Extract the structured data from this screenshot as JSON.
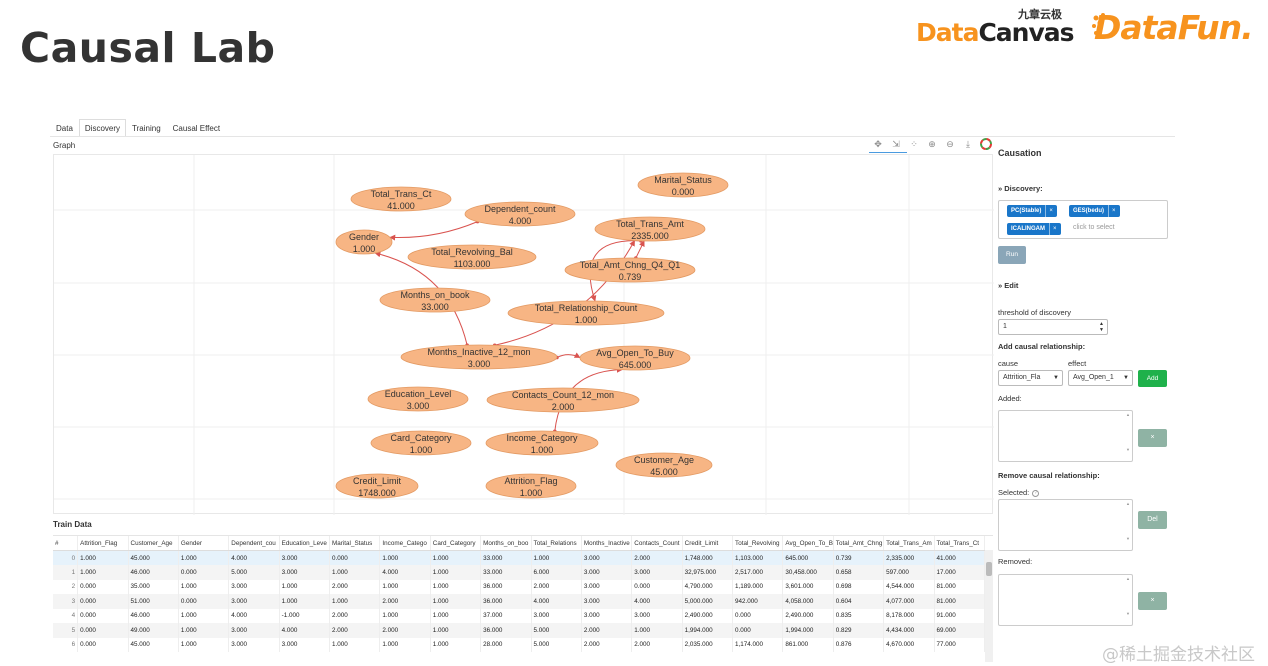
{
  "slide": {
    "title": "Causal Lab"
  },
  "logos": {
    "datacanvas_cn": "九章云极",
    "datacanvas_part1": "Data",
    "datacanvas_part2": "Canvas",
    "datafun": "DataFun."
  },
  "tabs": [
    {
      "label": "Data",
      "active": false
    },
    {
      "label": "Discovery",
      "active": true
    },
    {
      "label": "Training",
      "active": false
    },
    {
      "label": "Causal Effect",
      "active": false
    }
  ],
  "graph": {
    "label": "Graph",
    "toolbar_icons": [
      "move-icon",
      "select-icon",
      "layout-icon",
      "zoom-in-icon",
      "zoom-out-icon",
      "download-icon",
      "color-wheel-icon"
    ],
    "node_color": "#f7b584",
    "edge_color": "#d9534f",
    "nodes": [
      {
        "id": "total_trans_ct",
        "name": "Total_Trans_Ct",
        "value": "41.000"
      },
      {
        "id": "dependent_count",
        "name": "Dependent_count",
        "value": "4.000"
      },
      {
        "id": "marital_status",
        "name": "Marital_Status",
        "value": "0.000"
      },
      {
        "id": "total_trans_amt",
        "name": "Total_Trans_Amt",
        "value": "2335.000"
      },
      {
        "id": "gender",
        "name": "Gender",
        "value": "1.000"
      },
      {
        "id": "total_revolving_bal",
        "name": "Total_Revolving_Bal",
        "value": "1103.000"
      },
      {
        "id": "total_amt_chng",
        "name": "Total_Amt_Chng_Q4_Q1",
        "value": "0.739"
      },
      {
        "id": "months_on_book",
        "name": "Months_on_book",
        "value": "33.000"
      },
      {
        "id": "total_relationship_count",
        "name": "Total_Relationship_Count",
        "value": "1.000"
      },
      {
        "id": "months_inactive",
        "name": "Months_Inactive_12_mon",
        "value": "3.000"
      },
      {
        "id": "avg_open_to_buy",
        "name": "Avg_Open_To_Buy",
        "value": "645.000"
      },
      {
        "id": "education_level",
        "name": "Education_Level",
        "value": "3.000"
      },
      {
        "id": "contacts_count",
        "name": "Contacts_Count_12_mon",
        "value": "2.000"
      },
      {
        "id": "card_category",
        "name": "Card_Category",
        "value": "1.000"
      },
      {
        "id": "income_category",
        "name": "Income_Category",
        "value": "1.000"
      },
      {
        "id": "customer_age",
        "name": "Customer_Age",
        "value": "45.000"
      },
      {
        "id": "credit_limit",
        "name": "Credit_Limit",
        "value": "1748.000"
      },
      {
        "id": "attrition_flag",
        "name": "Attrition_Flag",
        "value": "1.000"
      }
    ],
    "edges": [
      {
        "from": "dependent_count",
        "to": "gender"
      },
      {
        "from": "months_inactive",
        "to": "gender"
      },
      {
        "from": "months_inactive",
        "to": "total_trans_amt"
      },
      {
        "from": "total_amt_chng",
        "to": "total_trans_amt"
      },
      {
        "from": "total_trans_amt",
        "to": "total_relationship_count"
      },
      {
        "from": "months_inactive",
        "to": "avg_open_to_buy"
      },
      {
        "from": "income_category",
        "to": "avg_open_to_buy"
      }
    ]
  },
  "train_data": {
    "label": "Train Data",
    "columns": [
      "#",
      "Attrition_Flag",
      "Customer_Age",
      "Gender",
      "Dependent_cou",
      "Education_Leve",
      "Marital_Status",
      "Income_Catego",
      "Card_Category",
      "Months_on_boo",
      "Total_Relations",
      "Months_Inactive",
      "Contacts_Count",
      "Credit_Limit",
      "Total_Revolving",
      "Avg_Open_To_B",
      "Total_Amt_Chng",
      "Total_Trans_Am",
      "Total_Trans_Ct"
    ],
    "rows": [
      [
        "0",
        "1.000",
        "45.000",
        "1.000",
        "4.000",
        "3.000",
        "0.000",
        "1.000",
        "1.000",
        "33.000",
        "1.000",
        "3.000",
        "2.000",
        "1,748.000",
        "1,103.000",
        "645.000",
        "0.739",
        "2,335.000",
        "41.000"
      ],
      [
        "1",
        "1.000",
        "46.000",
        "0.000",
        "5.000",
        "3.000",
        "1.000",
        "4.000",
        "1.000",
        "33.000",
        "6.000",
        "3.000",
        "3.000",
        "32,975.000",
        "2,517.000",
        "30,458.000",
        "0.658",
        "597.000",
        "17.000"
      ],
      [
        "2",
        "0.000",
        "35.000",
        "1.000",
        "3.000",
        "1.000",
        "2.000",
        "1.000",
        "1.000",
        "36.000",
        "2.000",
        "3.000",
        "0.000",
        "4,790.000",
        "1,189.000",
        "3,601.000",
        "0.698",
        "4,544.000",
        "81.000"
      ],
      [
        "3",
        "0.000",
        "51.000",
        "0.000",
        "3.000",
        "1.000",
        "1.000",
        "2.000",
        "1.000",
        "36.000",
        "4.000",
        "3.000",
        "4.000",
        "5,000.000",
        "942.000",
        "4,058.000",
        "0.604",
        "4,077.000",
        "81.000"
      ],
      [
        "4",
        "0.000",
        "46.000",
        "1.000",
        "4.000",
        "-1.000",
        "2.000",
        "1.000",
        "1.000",
        "37.000",
        "3.000",
        "3.000",
        "3.000",
        "2,490.000",
        "0.000",
        "2,490.000",
        "0.835",
        "8,178.000",
        "91.000"
      ],
      [
        "5",
        "0.000",
        "49.000",
        "1.000",
        "3.000",
        "4.000",
        "2.000",
        "2.000",
        "1.000",
        "36.000",
        "5.000",
        "2.000",
        "1.000",
        "1,994.000",
        "0.000",
        "1,994.000",
        "0.829",
        "4,434.000",
        "69.000"
      ],
      [
        "6",
        "0.000",
        "45.000",
        "1.000",
        "3.000",
        "3.000",
        "1.000",
        "1.000",
        "1.000",
        "28.000",
        "5.000",
        "2.000",
        "2.000",
        "2,035.000",
        "1,174.000",
        "861.000",
        "0.876",
        "4,670.000",
        "77.000"
      ]
    ]
  },
  "panel": {
    "title": "Causation",
    "discovery_section": "» Discovery:",
    "chips": [
      "PC(Stable)",
      "GES(bedu)",
      "ICALINGAM"
    ],
    "chip_remove": "×",
    "select_placeholder": "click to select",
    "run_label": "Run",
    "edit_section": "» Edit",
    "threshold_label": "threshold of discovery",
    "threshold_value": "1",
    "add_rel_label": "Add causal relationship:",
    "cause_label": "cause",
    "effect_label": "effect",
    "cause_value": "Attrition_Fla",
    "effect_value": "Avg_Open_1",
    "add_button": "Add",
    "added_label": "Added:",
    "remove_small_button": "×",
    "remove_rel_label": "Remove causal relationship:",
    "selected_label": "Selected:",
    "del_button": "Del",
    "removed_label": "Removed:",
    "restore_button": "×"
  },
  "watermark": "@稀土掘金技术社区"
}
